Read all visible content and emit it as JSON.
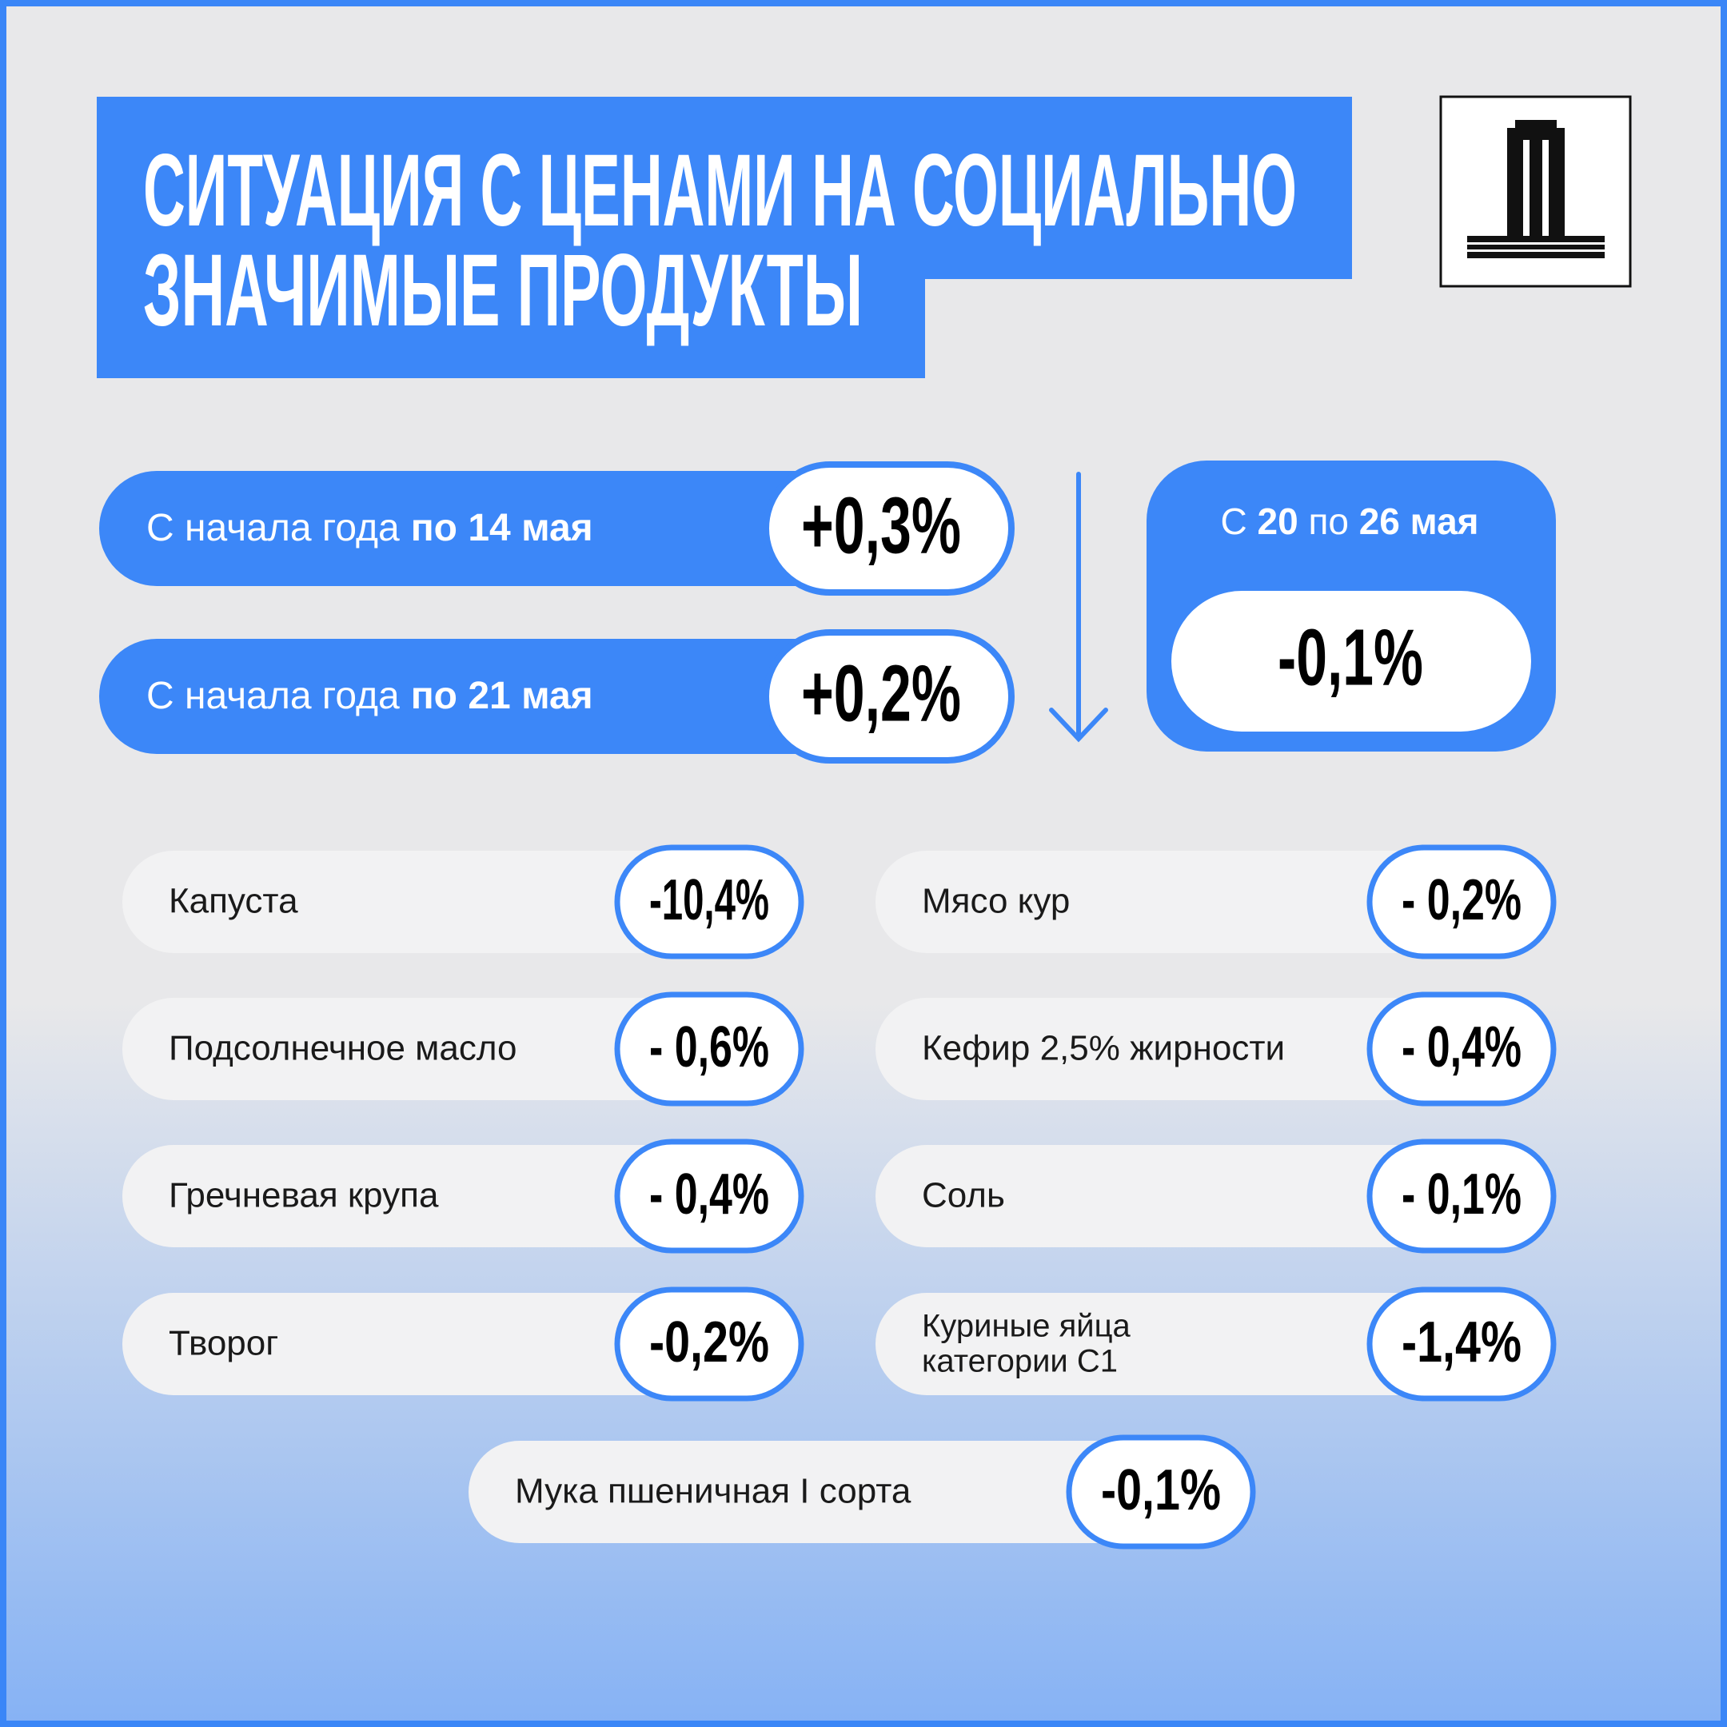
{
  "header": {
    "title": [
      "СИТУАЦИЯ С ЦЕНАМИ НА СОЦИАЛЬНО",
      "ЗНАЧИМЫЕ ПРОДУКТЫ"
    ]
  },
  "periods": [
    {
      "label": "С начала года",
      "label_bold": "по 14 мая",
      "value": "+0,3%"
    },
    {
      "label": "С начала года",
      "label_bold": "по 21 мая",
      "value": "+0,2%"
    }
  ],
  "week": {
    "prefix": "С",
    "from": "20",
    "middle": "по",
    "to": "26 мая",
    "value": "-0,1%"
  },
  "items": [
    {
      "name": [
        "Капуста"
      ],
      "value": "-10,4%"
    },
    {
      "name": [
        "Мясо кур"
      ],
      "value": "- 0,2%"
    },
    {
      "name": [
        "Подсолнечное масло"
      ],
      "value": "- 0,6%"
    },
    {
      "name": [
        "Кефир 2,5% жирности"
      ],
      "value": "- 0,4%"
    },
    {
      "name": [
        "Гречневая крупа"
      ],
      "value": "- 0,4%"
    },
    {
      "name": [
        "Соль"
      ],
      "value": "- 0,1%"
    },
    {
      "name": [
        "Творог"
      ],
      "value": "-0,2%"
    },
    {
      "name": [
        "Куриные яйца",
        "категории С1"
      ],
      "value": "-1,4%"
    },
    {
      "name": [
        "Мука пшеничная I сорта"
      ],
      "value": "-0,1%"
    }
  ]
}
